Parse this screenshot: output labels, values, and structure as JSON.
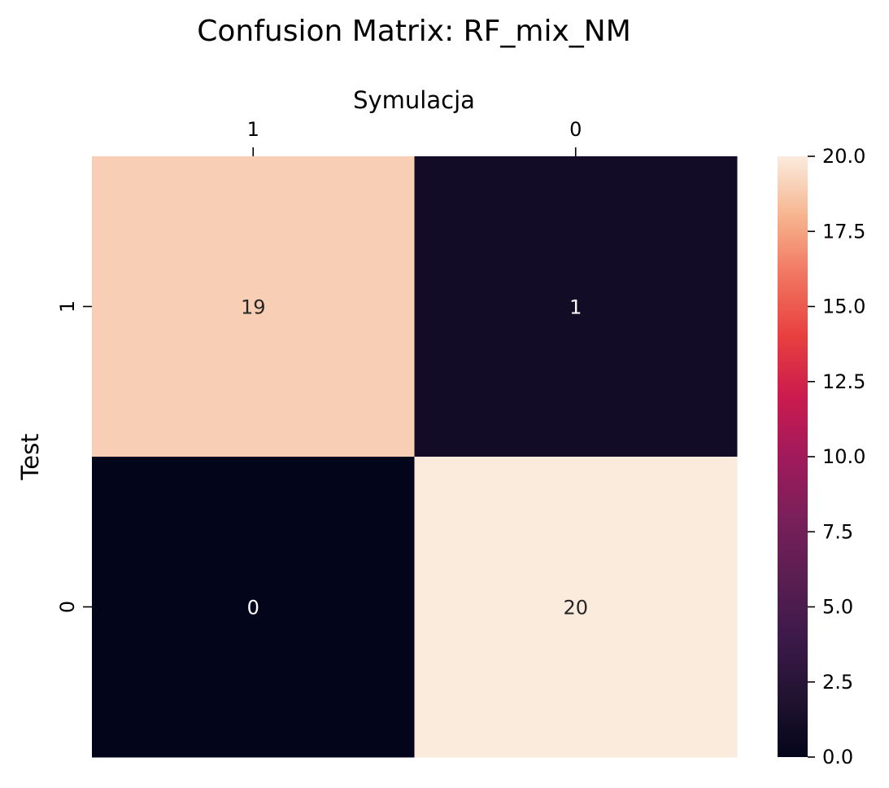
{
  "chart_data": {
    "type": "heatmap",
    "title": "Confusion Matrix: RF_mix_NM",
    "xlabel": "Symulacja",
    "ylabel": "Test",
    "x_categories": [
      "1",
      "0"
    ],
    "y_categories": [
      "1",
      "0"
    ],
    "values": [
      [
        19,
        1
      ],
      [
        0,
        20
      ]
    ],
    "colorbar": {
      "min": 0.0,
      "max": 20.0,
      "ticks": [
        "0.0",
        "2.5",
        "5.0",
        "7.5",
        "10.0",
        "12.5",
        "15.0",
        "17.5",
        "20.0"
      ],
      "colormap": "rocket"
    },
    "x_axis_position": "top",
    "grid": false
  }
}
